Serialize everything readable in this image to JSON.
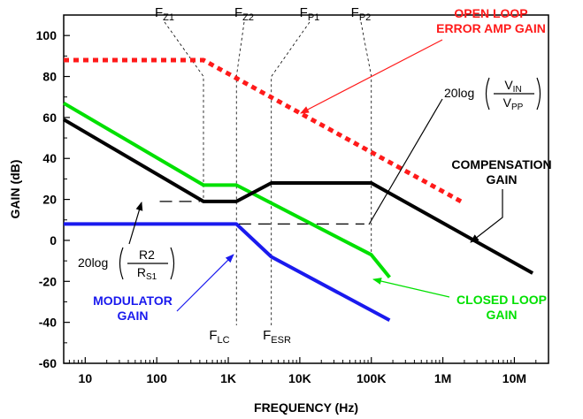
{
  "chart_data": {
    "type": "line",
    "title": "",
    "xlabel": "FREQUENCY (Hz)",
    "ylabel": "GAIN (dB)",
    "x_scale": "log",
    "xlim": [
      5,
      30000000
    ],
    "ylim": [
      -60,
      110
    ],
    "x_ticks": [
      10,
      100,
      1000,
      10000,
      100000,
      1000000,
      10000000
    ],
    "x_tick_labels": [
      "10",
      "100",
      "1K",
      "10K",
      "100K",
      "1M",
      "10M"
    ],
    "y_ticks": [
      -60,
      -40,
      -20,
      0,
      20,
      40,
      60,
      80,
      100
    ],
    "y_tick_labels": [
      "-60",
      "-40",
      "-20",
      "0",
      "20",
      "40",
      "60",
      "80",
      "100"
    ],
    "grid": false,
    "series": [
      {
        "key": "open_loop",
        "color": "#ff1a1a",
        "style": "dotted-thick",
        "x": [
          5,
          450,
          1800000
        ],
        "y": [
          88,
          88,
          19
        ]
      },
      {
        "key": "closed_loop",
        "color": "#00e000",
        "style": "solid",
        "x": [
          5,
          450,
          1300,
          100000,
          180000
        ],
        "y": [
          67,
          27,
          27,
          -7,
          -18
        ]
      },
      {
        "key": "compensation",
        "color": "#000000",
        "style": "solid",
        "x": [
          5,
          450,
          1300,
          4000,
          100000,
          18000000
        ],
        "y": [
          59,
          19,
          19,
          28,
          28,
          -16
        ]
      },
      {
        "key": "modulator",
        "color": "#1a1aee",
        "style": "solid",
        "x": [
          5,
          1300,
          4000,
          180000
        ],
        "y": [
          8,
          8,
          -8,
          -39
        ]
      }
    ],
    "reference_dashes": [
      {
        "x": [
          110,
          400
        ],
        "y": [
          19,
          19
        ]
      },
      {
        "x": [
          1400,
          80000
        ],
        "y": [
          8,
          8
        ]
      }
    ],
    "vertical_markers": [
      {
        "x": 450,
        "name": "FZ1",
        "base": "F",
        "sub": "Z1"
      },
      {
        "x": 1300,
        "name": "FZ2",
        "base": "F",
        "sub": "Z2"
      },
      {
        "x": 4000,
        "name": "FP1",
        "base": "F",
        "sub": "P1"
      },
      {
        "x": 100000,
        "name": "FP2",
        "base": "F",
        "sub": "P2"
      },
      {
        "x": 1300,
        "name": "FLC",
        "base": "F",
        "sub": "LC"
      },
      {
        "x": 4000,
        "name": "FESR",
        "base": "F",
        "sub": "ESR"
      }
    ],
    "annotations": [
      {
        "key": "open_loop_label",
        "lines": [
          "OPEN LOOP",
          "ERROR AMP GAIN"
        ],
        "color": "#ff1a1a"
      },
      {
        "key": "compensation_label",
        "lines": [
          "COMPENSATION",
          "GAIN"
        ],
        "color": "#000000"
      },
      {
        "key": "closed_loop_label",
        "lines": [
          "CLOSED LOOP",
          "GAIN"
        ],
        "color": "#00e000"
      },
      {
        "key": "modulator_label",
        "lines": [
          "MODULATOR",
          "GAIN"
        ],
        "color": "#1a1aee"
      }
    ],
    "formulas": [
      {
        "key": "vin_vpp",
        "prefix": "20log",
        "numerator": "V",
        "numerator_sub": "IN",
        "denominator": "V",
        "denominator_sub": "PP"
      },
      {
        "key": "r2_rs1",
        "prefix": "20log",
        "numerator": "R2",
        "numerator_sub": "",
        "denominator": "R",
        "denominator_sub": "S1"
      }
    ]
  }
}
